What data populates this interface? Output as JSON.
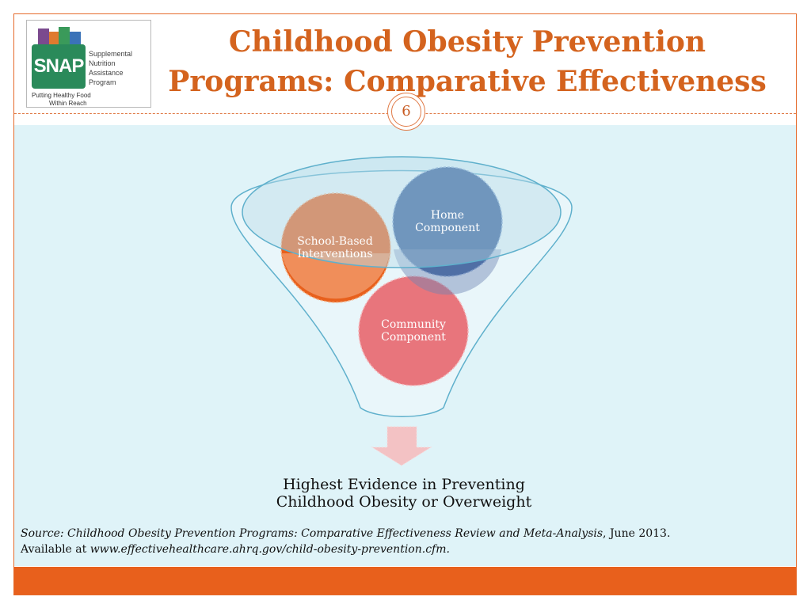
{
  "header": {
    "title_line1": "Childhood Obesity Prevention",
    "title_line2": "Programs: Comparative Effectiveness",
    "page_number": "6"
  },
  "logo": {
    "abbr": "SNAP",
    "line1": "Supplemental",
    "line2": "Nutrition",
    "line3": "Assistance",
    "line4": "Program",
    "tagline1": "Putting Healthy Food",
    "tagline2": "Within Reach",
    "color": "#2a8a5a"
  },
  "diagram": {
    "circles": [
      {
        "label_l1": "School-Based",
        "label_l2": "Interventions",
        "color": "#e8601c"
      },
      {
        "label_l1": "Home",
        "label_l2": "Component",
        "color": "#355e9a"
      },
      {
        "label_l1": "Community",
        "label_l2": "Component",
        "color": "#e8757c"
      }
    ],
    "result_l1": "Highest Evidence in Preventing",
    "result_l2": "Childhood Obesity or Overweight"
  },
  "source": {
    "prefix": "Source: ",
    "title": "Childhood Obesity Prevention Programs: Comparative Effectiveness Review and Meta-Analysis",
    "date": ", June 2013.",
    "available": "Available at ",
    "url": "www.effectivehealthcare.ahrq.gov/child-obesity-prevention.cfm",
    "end": "."
  },
  "colors": {
    "accent": "#e8601c",
    "title": "#d4631e",
    "content_bg": "#dff3f8"
  }
}
